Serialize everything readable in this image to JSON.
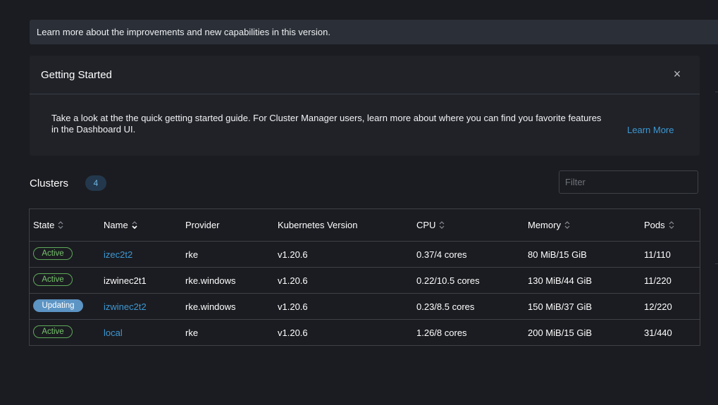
{
  "banner": {
    "text": "Learn more about the improvements and new capabilities in this version."
  },
  "getting_started": {
    "title": "Getting Started",
    "close_glyph": "×",
    "body": "Take a look at the the quick getting started guide. For Cluster Manager users, learn more about where you can find you favorite features in the Dashboard UI.",
    "learn_more": "Learn More"
  },
  "clusters": {
    "title": "Clusters",
    "count": "4",
    "filter_placeholder": "Filter",
    "filter_value": ""
  },
  "table": {
    "headers": {
      "state": "State",
      "name": "Name",
      "provider": "Provider",
      "k8s": "Kubernetes Version",
      "cpu": "CPU",
      "memory": "Memory",
      "pods": "Pods"
    },
    "rows": [
      {
        "state": "Active",
        "state_kind": "active",
        "name": "izec2t2",
        "name_link": true,
        "provider": "rke",
        "version": "v1.20.6",
        "cpu": "0.37/4 cores",
        "memory": "80 MiB/15 GiB",
        "pods": "11/110"
      },
      {
        "state": "Active",
        "state_kind": "active",
        "name": "izwinec2t1",
        "name_link": false,
        "provider": "rke.windows",
        "version": "v1.20.6",
        "cpu": "0.22/10.5 cores",
        "memory": "130 MiB/44 GiB",
        "pods": "11/220"
      },
      {
        "state": "Updating",
        "state_kind": "updating",
        "name": "izwinec2t2",
        "name_link": true,
        "provider": "rke.windows",
        "version": "v1.20.6",
        "cpu": "0.23/8.5 cores",
        "memory": "150 MiB/37 GiB",
        "pods": "12/220"
      },
      {
        "state": "Active",
        "state_kind": "active",
        "name": "local",
        "name_link": true,
        "provider": "rke",
        "version": "v1.20.6",
        "cpu": "1.26/8 cores",
        "memory": "200 MiB/15 GiB",
        "pods": "31/440"
      }
    ]
  },
  "colors": {
    "background": "#1b1c21",
    "link": "#3d98d3",
    "active_badge": "#78c46e",
    "updating_badge": "#5c94c4"
  },
  "icons": {
    "sort": "sort-icon",
    "close": "close-icon"
  }
}
